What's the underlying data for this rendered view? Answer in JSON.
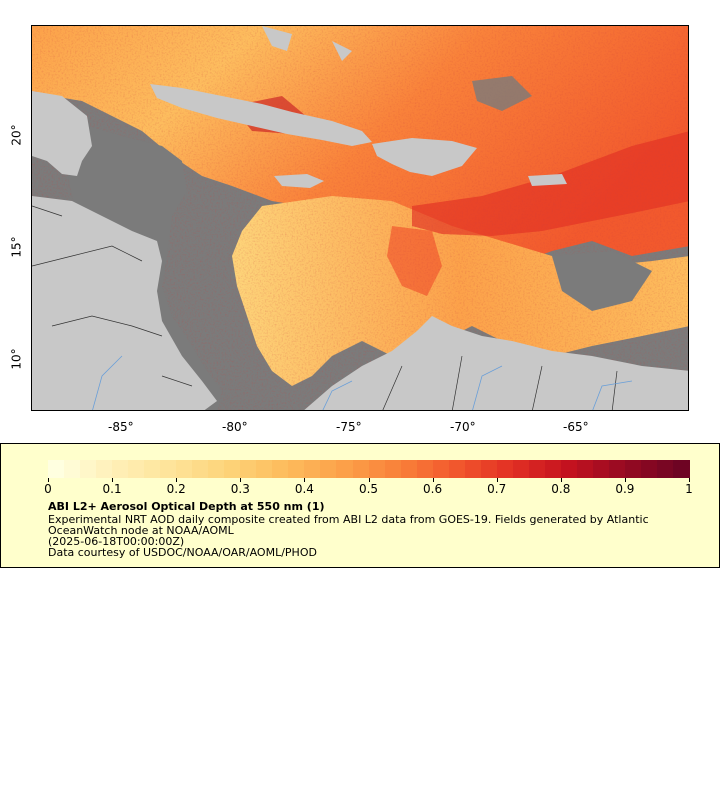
{
  "map": {
    "lon_labels": [
      "-85°",
      "-80°",
      "-75°",
      "-70°",
      "-65°"
    ],
    "lat_labels": [
      "20°",
      "15°",
      "10°"
    ],
    "colors": {
      "land": "#c8c8c8",
      "no_data": "#7b7b7b",
      "border": "#333333",
      "river": "#6a9fd8"
    }
  },
  "legend": {
    "tick_labels": [
      "0",
      "0.1",
      "0.2",
      "0.3",
      "0.4",
      "0.5",
      "0.6",
      "0.7",
      "0.8",
      "0.9",
      "1"
    ],
    "title": "ABI L2+ Aerosol Optical Depth at 550 nm (1)",
    "description": "Experimental NRT AOD daily composite created from ABI L2 data from GOES-19. Fields generated by Atlantic OceanWatch node at NOAA/AOML",
    "time": "(2025-06-18T00:00:00Z)",
    "credit": "Data courtesy of USDOC/NOAA/OAR/AOML/PHOD",
    "colormap": [
      "#ffffe0",
      "#fff0b8",
      "#fee49a",
      "#fdd47a",
      "#fdbd5e",
      "#fca24a",
      "#f9823a",
      "#f2592d",
      "#e23024",
      "#c4121f",
      "#960a22",
      "#6e0423"
    ]
  }
}
